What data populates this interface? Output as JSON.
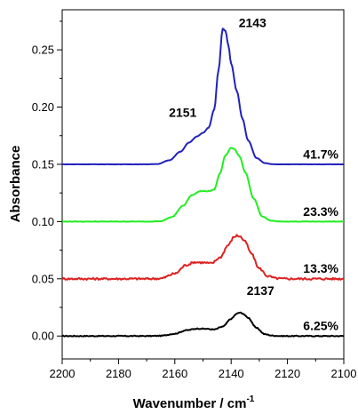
{
  "chart_data": {
    "type": "line",
    "xlabel": "Wavenumber / cm",
    "xlabel_sup": "-1",
    "ylabel": "Absorbance",
    "x_reversed": true,
    "xlim": [
      2200,
      2100
    ],
    "ylim": [
      -0.02,
      0.285
    ],
    "x_ticks": [
      "2200",
      "2180",
      "2160",
      "2140",
      "2120",
      "2100"
    ],
    "y_ticks": [
      "0.00",
      "0.05",
      "0.10",
      "0.15",
      "0.20",
      "0.25"
    ],
    "grid": false,
    "series": [
      {
        "label": "6.25%",
        "color": "#000000",
        "baseline": 0.0,
        "noise": 0.0004,
        "x": [
          2200,
          2170,
          2165,
          2160,
          2156,
          2152,
          2149,
          2146,
          2143,
          2140,
          2138,
          2137,
          2136,
          2134,
          2131,
          2128,
          2125,
          2122,
          2100
        ],
        "y": [
          0.0,
          0.0,
          0.0002,
          0.002,
          0.005,
          0.0065,
          0.0063,
          0.0057,
          0.0082,
          0.015,
          0.0195,
          0.0205,
          0.0198,
          0.016,
          0.007,
          0.0015,
          0.0003,
          0.0,
          0.0
        ]
      },
      {
        "label": "13.3%",
        "color": "#dd2222",
        "baseline": 0.05,
        "noise": 0.0009,
        "x": [
          2200,
          2170,
          2165,
          2160,
          2156,
          2153,
          2150,
          2147,
          2144,
          2141,
          2139,
          2138,
          2137,
          2135,
          2133,
          2130,
          2127,
          2124,
          2121,
          2100
        ],
        "y": [
          0.05,
          0.05,
          0.0503,
          0.0545,
          0.062,
          0.0645,
          0.0642,
          0.0635,
          0.0685,
          0.0795,
          0.0865,
          0.0878,
          0.0872,
          0.0825,
          0.0725,
          0.059,
          0.0523,
          0.0504,
          0.05,
          0.05
        ]
      },
      {
        "label": "23.3%",
        "color": "#22ee22",
        "baseline": 0.1,
        "noise": 0.0002,
        "x": [
          2200,
          2170,
          2165,
          2161,
          2157,
          2154,
          2151,
          2148,
          2146,
          2144,
          2142,
          2140,
          2139,
          2137,
          2135,
          2132,
          2129,
          2126,
          2123,
          2100
        ],
        "y": [
          0.1,
          0.1,
          0.1003,
          0.104,
          0.114,
          0.123,
          0.1265,
          0.1265,
          0.128,
          0.142,
          0.158,
          0.1645,
          0.1635,
          0.157,
          0.143,
          0.12,
          0.1045,
          0.1008,
          0.1,
          0.1
        ]
      },
      {
        "label": "41.7%",
        "color": "#2222bb",
        "baseline": 0.15,
        "noise": 0.0001,
        "x": [
          2200,
          2170,
          2166,
          2162,
          2158,
          2155,
          2152,
          2150,
          2148,
          2146,
          2144.5,
          2143,
          2142,
          2141,
          2140,
          2138,
          2136,
          2134,
          2131,
          2128,
          2125,
          2100
        ],
        "y": [
          0.15,
          0.15,
          0.1503,
          0.1535,
          0.161,
          0.169,
          0.1745,
          0.1775,
          0.182,
          0.198,
          0.232,
          0.2685,
          0.2665,
          0.254,
          0.238,
          0.214,
          0.19,
          0.171,
          0.1555,
          0.151,
          0.15,
          0.15
        ]
      }
    ],
    "annotations": [
      {
        "text": "2143",
        "x": 2143,
        "y": 0.2685
      },
      {
        "text": "2151",
        "x": 2151,
        "y": 0.1775
      },
      {
        "text": "2137",
        "x": 2137,
        "y": 0.0205
      }
    ]
  }
}
